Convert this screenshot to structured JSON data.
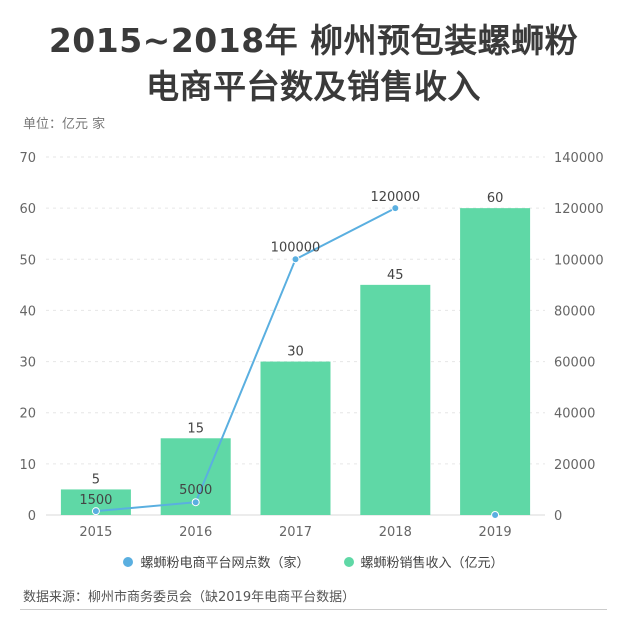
{
  "title_line1": "2015~2018年 柳州预包装螺蛳粉",
  "title_line2": "电商平台数及销售收入",
  "unit_note": "单位：亿元 家",
  "source_note": "数据来源：柳州市商务委员会（缺2019年电商平台数据）",
  "colors": {
    "bar": "#5fd8a6",
    "line": "#5aafe0",
    "grid": "#e6e6e6"
  },
  "chart_data": {
    "type": "bar+line",
    "categories": [
      "2015",
      "2016",
      "2017",
      "2018",
      "2019"
    ],
    "series": [
      {
        "name": "螺蛳粉销售收入（亿元）",
        "type": "bar",
        "axis": "left",
        "values": [
          5,
          15,
          30,
          45,
          60
        ],
        "labels": [
          "5",
          "15",
          "30",
          "45",
          "60"
        ]
      },
      {
        "name": "螺蛳粉电商平台网点数（家）",
        "type": "line",
        "axis": "right",
        "values": [
          1500,
          5000,
          100000,
          120000,
          0
        ],
        "labels": [
          "1500",
          "5000",
          "100000",
          "120000",
          ""
        ],
        "connected_points": 4
      }
    ],
    "y_left": {
      "min": 0,
      "max": 70,
      "step": 10,
      "ticks": [
        "0",
        "10",
        "20",
        "30",
        "40",
        "50",
        "60",
        "70"
      ]
    },
    "y_right": {
      "min": 0,
      "max": 140000,
      "step": 20000,
      "ticks": [
        "0",
        "20000",
        "40000",
        "60000",
        "80000",
        "100000",
        "120000",
        "140000"
      ]
    },
    "grid": true,
    "legend_position": "bottom-center"
  }
}
